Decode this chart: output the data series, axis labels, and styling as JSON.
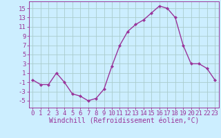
{
  "x": [
    0,
    1,
    2,
    3,
    4,
    5,
    6,
    7,
    8,
    9,
    10,
    11,
    12,
    13,
    14,
    15,
    16,
    17,
    18,
    19,
    20,
    21,
    22,
    23
  ],
  "y": [
    -0.5,
    -1.5,
    -1.5,
    1.0,
    -1.0,
    -3.5,
    -4.0,
    -5.0,
    -4.5,
    -2.5,
    2.5,
    7.0,
    10.0,
    11.5,
    12.5,
    14.0,
    15.5,
    15.0,
    13.0,
    7.0,
    3.0,
    3.0,
    2.0,
    -0.5
  ],
  "line_color": "#993399",
  "marker": "D",
  "marker_size": 2.2,
  "bg_color": "#cceeff",
  "grid_color": "#aacccc",
  "xlabel": "Windchill (Refroidissement éolien,°C)",
  "ylabel_ticks": [
    -5,
    -3,
    -1,
    1,
    3,
    5,
    7,
    9,
    11,
    13,
    15
  ],
  "xlim": [
    -0.5,
    23.5
  ],
  "ylim": [
    -6.5,
    16.5
  ],
  "tick_color": "#993399",
  "label_color": "#993399",
  "label_fontsize": 7,
  "tick_fontsize": 6.5,
  "line_width": 1.0
}
